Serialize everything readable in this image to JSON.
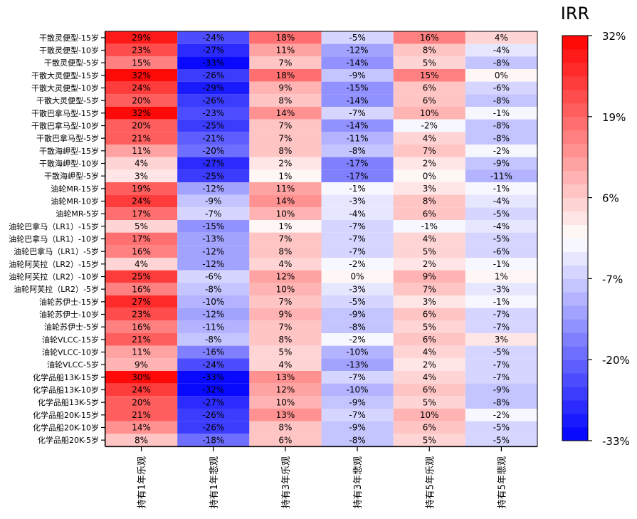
{
  "chart_data": {
    "type": "heatmap",
    "legend_title": "IRR",
    "value_format": "percent",
    "columns": [
      "持有1年乐观",
      "持有1年悲观",
      "持有3年乐观",
      "持有3年悲观",
      "持有5年乐观",
      "持有5年悲观"
    ],
    "rows": [
      "干散灵便型-15岁",
      "干散灵便型-10岁",
      "干散灵便型-5岁",
      "干散大灵便型-15岁",
      "干散大灵便型-10岁",
      "干散大灵便型-5岁",
      "干散巴拿马型-15岁",
      "干散巴拿马型-10岁",
      "干散巴拿马型-5岁",
      "干散海岬型-15岁",
      "干散海岬型-10岁",
      "干散海岬型-5岁",
      "油轮MR-15岁",
      "油轮MR-10岁",
      "油轮MR-5岁",
      "油轮巴拿马（LR1）-15岁",
      "油轮巴拿马（LR1）-10岁",
      "油轮巴拿马（LR1）-5岁",
      "油轮阿芙拉（LR2）-15岁",
      "油轮阿芙拉（LR2）-10岁",
      "油轮阿芙拉（LR2）-5岁",
      "油轮苏伊士-15岁",
      "油轮苏伊士-10岁",
      "油轮苏伊士-5岁",
      "油轮VLCC-15岁",
      "油轮VLCC-10岁",
      "油轮VLCC-5岁",
      "化学品船13K-15岁",
      "化学品船13K-10岁",
      "化学品船13K-5岁",
      "化学品船20K-15岁",
      "化学品船20K-10岁",
      "化学品船20K-5岁"
    ],
    "values": [
      [
        29,
        -24,
        18,
        -5,
        16,
        4
      ],
      [
        23,
        -27,
        11,
        -12,
        8,
        -4
      ],
      [
        15,
        -33,
        7,
        -14,
        5,
        -8
      ],
      [
        32,
        -26,
        18,
        -9,
        15,
        0
      ],
      [
        24,
        -29,
        9,
        -15,
        6,
        -6
      ],
      [
        20,
        -26,
        8,
        -14,
        6,
        -8
      ],
      [
        32,
        -23,
        14,
        -7,
        10,
        -1
      ],
      [
        20,
        -25,
        7,
        -14,
        -2,
        -8
      ],
      [
        21,
        -21,
        7,
        -11,
        4,
        -8
      ],
      [
        11,
        -20,
        8,
        -8,
        7,
        -2
      ],
      [
        4,
        -27,
        2,
        -17,
        2,
        -9
      ],
      [
        3,
        -25,
        1,
        -17,
        0,
        -11
      ],
      [
        19,
        -12,
        11,
        -1,
        3,
        -1
      ],
      [
        24,
        -9,
        14,
        -3,
        8,
        -4
      ],
      [
        17,
        -7,
        10,
        -4,
        6,
        -5
      ],
      [
        5,
        -15,
        1,
        -7,
        -1,
        -4
      ],
      [
        17,
        -13,
        7,
        -7,
        4,
        -5
      ],
      [
        16,
        -12,
        8,
        -7,
        5,
        -6
      ],
      [
        4,
        -12,
        4,
        -2,
        2,
        -1
      ],
      [
        25,
        -6,
        12,
        0,
        9,
        1
      ],
      [
        16,
        -8,
        10,
        -3,
        7,
        -3
      ],
      [
        27,
        -10,
        7,
        -5,
        3,
        -1
      ],
      [
        23,
        -12,
        9,
        -9,
        6,
        -7
      ],
      [
        16,
        -11,
        7,
        -8,
        5,
        -7
      ],
      [
        21,
        -8,
        8,
        -2,
        6,
        3
      ],
      [
        11,
        -16,
        5,
        -10,
        4,
        -5
      ],
      [
        9,
        -24,
        4,
        -13,
        2,
        -7
      ],
      [
        30,
        -33,
        13,
        -7,
        4,
        -7
      ],
      [
        24,
        -32,
        12,
        -10,
        6,
        -9
      ],
      [
        20,
        -27,
        10,
        -9,
        5,
        -8
      ],
      [
        21,
        -26,
        13,
        -7,
        10,
        -2
      ],
      [
        14,
        -26,
        8,
        -9,
        6,
        -5
      ],
      [
        8,
        -18,
        6,
        -8,
        5,
        -5
      ]
    ],
    "color_scale": {
      "min": -33,
      "max": 32,
      "min_color": "#0000ff",
      "mid_color": "#ffffff",
      "max_color": "#ff0000",
      "steps": 30
    },
    "colorbar_ticks": [
      "32%",
      "19%",
      "6%",
      "-7%",
      "-20%",
      "-33%"
    ],
    "colorbar_tick_values": [
      32,
      19,
      6,
      -7,
      -20,
      -33
    ]
  }
}
